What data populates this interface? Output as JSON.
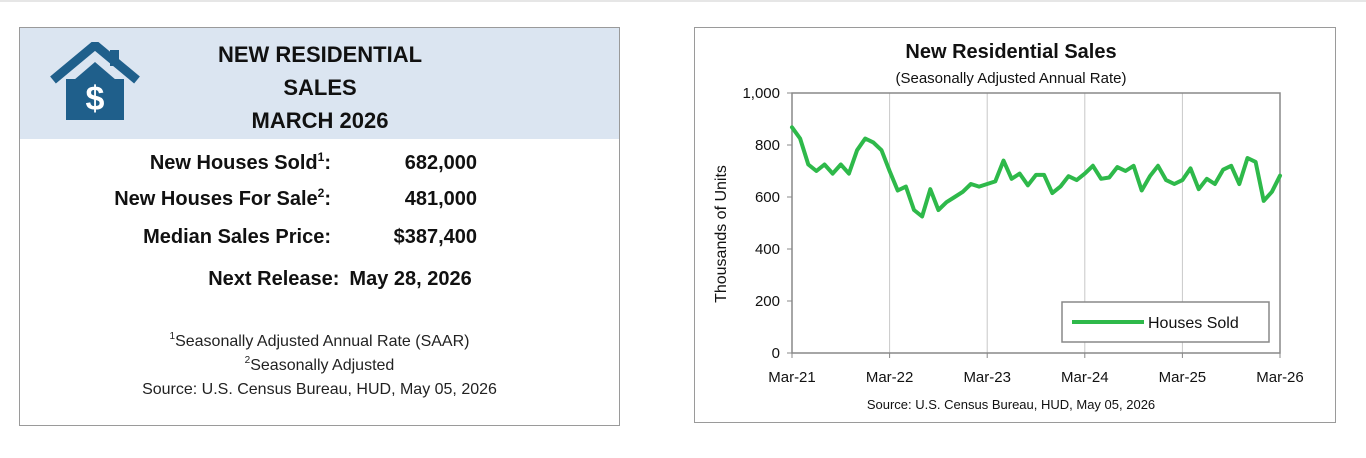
{
  "colors": {
    "header_bg": "#dbe5f1",
    "house_icon": "#1f5f8b",
    "series_line": "#2eb94a"
  },
  "left_panel": {
    "icon": "house-dollar-icon",
    "title_lines": [
      "NEW RESIDENTIAL",
      "SALES",
      "MARCH 2026"
    ],
    "stats": [
      {
        "label": "New Houses Sold",
        "sup": "1",
        "value": "682,000"
      },
      {
        "label": "New Houses For Sale",
        "sup": "2",
        "value": "481,000"
      },
      {
        "label": "Median Sales Price",
        "sup": "",
        "value": "$387,400"
      }
    ],
    "next_release_label": "Next Release:",
    "next_release_date": "May 28, 2026",
    "footnotes": [
      {
        "sup": "1",
        "text": "Seasonally Adjusted Annual Rate (SAAR)"
      },
      {
        "sup": "2",
        "text": "Seasonally Adjusted"
      }
    ],
    "source": "Source:  U.S. Census Bureau, HUD, May 05, 2026"
  },
  "chart_data": {
    "type": "line",
    "title": "New Residential Sales",
    "subtitle": "(Seasonally Adjusted Annual Rate)",
    "ylabel": "Thousands of Units",
    "xlabel": "",
    "ylim": [
      0,
      1000
    ],
    "yticks": [
      0,
      200,
      400,
      600,
      800,
      1000
    ],
    "ytick_labels": [
      "0",
      "200",
      "400",
      "600",
      "800",
      "1,000"
    ],
    "xticks": [
      "Mar-21",
      "Mar-22",
      "Mar-23",
      "Mar-24",
      "Mar-25",
      "Mar-26"
    ],
    "grid": "vertical",
    "legend_position": "bottom-right",
    "source": "Source:  U.S. Census Bureau, HUD, May 05, 2026",
    "series": [
      {
        "name": "Houses Sold",
        "x_start": "Mar-21",
        "x_end": "Mar-26",
        "values": [
          868,
          825,
          725,
          700,
          725,
          690,
          725,
          690,
          780,
          825,
          810,
          780,
          700,
          625,
          640,
          550,
          525,
          630,
          550,
          580,
          600,
          620,
          650,
          640,
          650,
          660,
          740,
          670,
          690,
          645,
          685,
          685,
          615,
          640,
          680,
          665,
          690,
          720,
          670,
          675,
          715,
          700,
          720,
          625,
          680,
          720,
          665,
          650,
          665,
          710,
          630,
          670,
          650,
          705,
          720,
          650,
          750,
          735,
          585,
          620,
          682
        ]
      }
    ]
  }
}
